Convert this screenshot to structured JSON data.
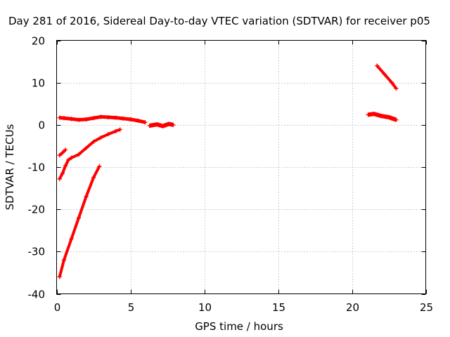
{
  "chart_data": {
    "type": "scatter",
    "title": "Day 281 of 2016, Sidereal Day-to-day VTEC variation (SDTVAR) for receiver p05",
    "xlabel": "GPS time / hours",
    "ylabel": "SDTVAR / TECUs",
    "xlim": [
      0,
      25
    ],
    "ylim": [
      -40,
      20
    ],
    "xticks": [
      0,
      5,
      10,
      15,
      20,
      25
    ],
    "yticks": [
      -40,
      -30,
      -20,
      -10,
      0,
      10,
      20
    ],
    "grid": true,
    "color": "#ff0000",
    "series": [
      {
        "x": [
          0.2,
          0.5,
          1.0,
          1.5,
          2.0,
          2.5,
          3.0,
          3.5,
          4.0,
          4.5,
          5.0,
          5.5,
          6.0
        ],
        "y": [
          1.7,
          1.6,
          1.4,
          1.2,
          1.3,
          1.6,
          1.9,
          1.8,
          1.7,
          1.5,
          1.3,
          1.0,
          0.6
        ],
        "width": 5
      },
      {
        "x": [
          6.3,
          6.8,
          7.2,
          7.6,
          7.9
        ],
        "y": [
          -0.2,
          0.1,
          -0.3,
          0.2,
          0.0
        ],
        "width": 6
      },
      {
        "x": [
          0.2,
          0.4,
          0.6
        ],
        "y": [
          -7.2,
          -6.6,
          -5.9
        ],
        "width": 4
      },
      {
        "x": [
          0.2,
          0.4,
          0.6,
          0.8,
          1.0,
          1.5,
          2.0,
          2.5,
          3.0,
          3.5,
          4.0,
          4.3
        ],
        "y": [
          -12.8,
          -11.5,
          -9.7,
          -8.3,
          -7.8,
          -7.0,
          -5.5,
          -4.0,
          -3.0,
          -2.2,
          -1.5,
          -1.1
        ],
        "width": 4
      },
      {
        "x": [
          0.2,
          0.5,
          1.0,
          1.5,
          2.0,
          2.5,
          2.9
        ],
        "y": [
          -36.0,
          -32.0,
          -27.0,
          -22.0,
          -17.0,
          -12.5,
          -9.8
        ],
        "width": 4
      },
      {
        "x": [
          21.1,
          21.5,
          22.0,
          22.5,
          23.0
        ],
        "y": [
          2.4,
          2.6,
          2.1,
          1.8,
          1.2
        ],
        "width": 6
      },
      {
        "x": [
          21.7,
          22.2,
          22.7,
          23.0
        ],
        "y": [
          14.0,
          12.0,
          10.0,
          8.6
        ],
        "width": 4
      }
    ]
  }
}
